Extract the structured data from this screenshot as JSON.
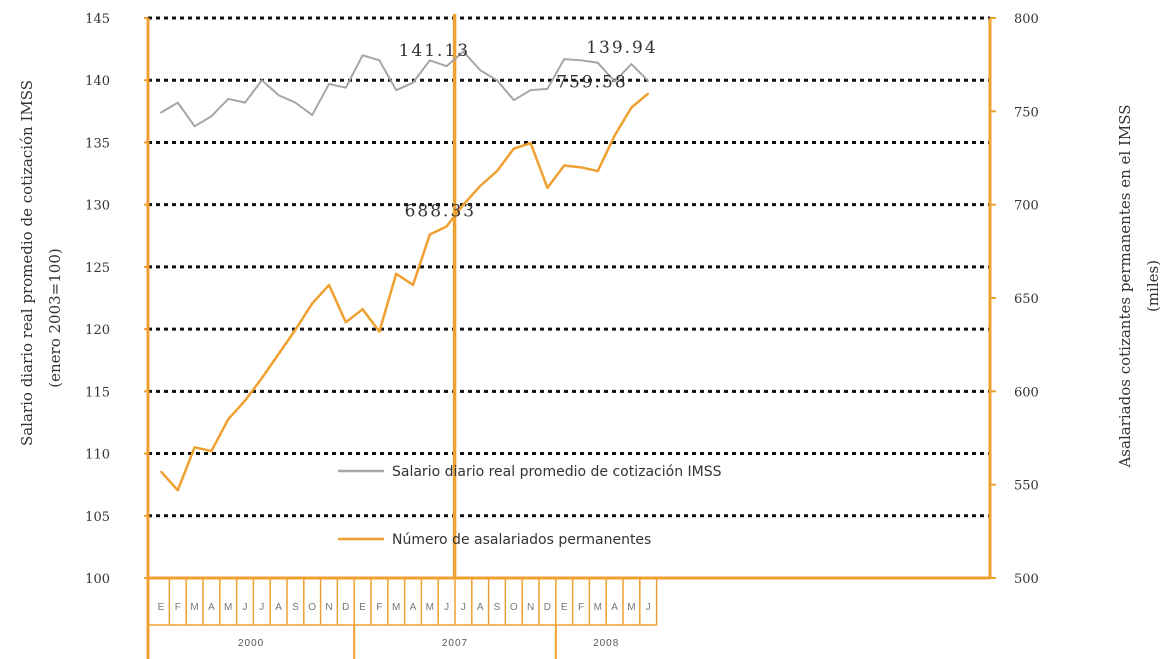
{
  "chart_data": {
    "type": "line",
    "y_left": {
      "label_line1": "Salario diario real promedio de cotización IMSS",
      "label_line2": "(enero 2003=100)",
      "ylim": [
        100,
        145
      ],
      "ticks": [
        "100",
        "105",
        "110",
        "115",
        "120",
        "125",
        "130",
        "135",
        "140",
        "145"
      ]
    },
    "y_right": {
      "label_line1": "Asalariados cotizantes permanentes en el IMSS",
      "label_line2": "(miles)",
      "ylim": [
        500,
        800
      ],
      "ticks": [
        "500",
        "550",
        "600",
        "650",
        "700",
        "750",
        "800"
      ]
    },
    "x": {
      "months": [
        "E",
        "F",
        "M",
        "A",
        "M",
        "J",
        "J",
        "A",
        "S",
        "O",
        "N",
        "D",
        "E",
        "F",
        "M",
        "A",
        "M",
        "J",
        "J",
        "A",
        "S",
        "O",
        "N",
        "D",
        "E",
        "F",
        "M",
        "A",
        "M",
        "J"
      ],
      "years": [
        {
          "label": "2000",
          "start": 0,
          "end": 12
        },
        {
          "label": "2007",
          "start": 12,
          "end": 24
        },
        {
          "label": "2008",
          "start": 24,
          "end": 30
        }
      ]
    },
    "grid": "horizontal-dotted",
    "series": [
      {
        "name": "Salario diario real promedio de cotización IMSS",
        "axis": "left",
        "color": "#a6a6a6",
        "values": [
          137.4,
          138.2,
          136.3,
          137.1,
          138.5,
          138.2,
          140.0,
          138.8,
          138.2,
          137.2,
          139.7,
          139.4,
          142.0,
          141.6,
          139.2,
          139.8,
          141.6,
          141.13,
          142.3,
          140.8,
          140.0,
          138.4,
          139.2,
          139.3,
          141.7,
          141.6,
          141.4,
          139.9,
          141.3,
          139.94
        ]
      },
      {
        "name": "Número de asalariados permanentes",
        "axis": "right",
        "color": "#f0a030",
        "values": [
          557,
          547,
          570,
          568,
          585,
          595,
          607,
          620,
          633,
          647,
          657,
          637,
          644,
          632,
          663,
          657,
          684,
          688.33,
          700,
          710,
          718,
          730,
          733,
          709,
          721,
          720,
          718,
          737,
          752,
          759.58
        ]
      }
    ],
    "annotations": [
      {
        "text": "141.13",
        "series": 0,
        "index": 17
      },
      {
        "text": "688.33",
        "series": 1,
        "index": 17
      },
      {
        "text": "139.94",
        "series": 0,
        "index": 29
      },
      {
        "text": "759.58",
        "series": 1,
        "index": 29
      }
    ],
    "highlight_index": 17,
    "legend_placement": "bottom-center"
  },
  "colors": {
    "orange": "#f0a030",
    "gray": "#a6a6a6",
    "grid": "#111111"
  }
}
